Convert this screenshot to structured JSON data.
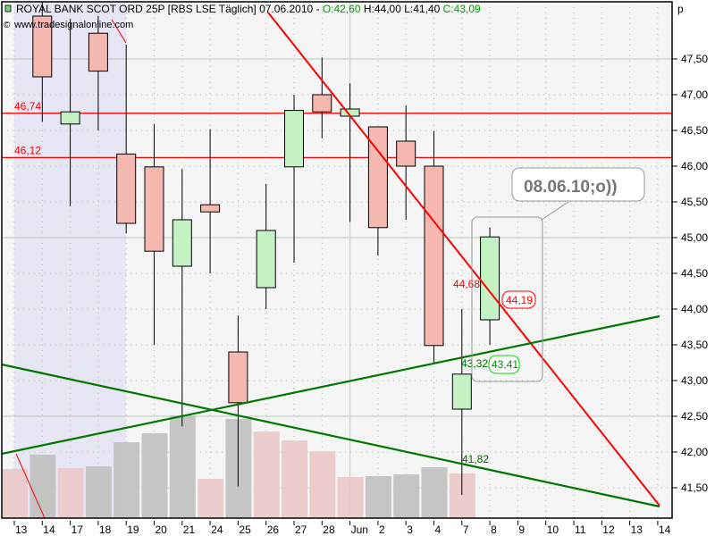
{
  "header": {
    "symbol_text": "ROYAL BANK SCOT ORD 25P [RBS LSE  Täglich] 07.06.2010 - ",
    "open_text": "O:42,60",
    "high_text": "H:44,00",
    "low_text": "L:41,40",
    "close_text": "C:43,09",
    "watermark": "www.tradesignalonline.com",
    "axis_unit": "p"
  },
  "colors": {
    "up_body": "#c4f2c4",
    "down_body": "#f5b8b0",
    "volume_up": "#c0c0c0",
    "volume_down": "#ecc8c8",
    "trend_red": "#ff0000",
    "trend_green": "#007700",
    "background": "#f5f5f5",
    "highlight_region": "#e6e6f4"
  },
  "chart_data": {
    "type": "candlestick",
    "ylim": [
      41.1,
      48.0
    ],
    "y_ticks": [
      "47,50",
      "47,00",
      "46,50",
      "46,00",
      "45,50",
      "45,00",
      "44,50",
      "44,00",
      "43,50",
      "43,00",
      "42,50",
      "42,00",
      "41,50"
    ],
    "y_tick_values": [
      47.5,
      47.0,
      46.5,
      46.0,
      45.5,
      45.0,
      44.5,
      44.0,
      43.5,
      43.0,
      42.5,
      42.0,
      41.5
    ],
    "x_ticks": [
      "13",
      "14",
      "17",
      "18",
      "19",
      "20",
      "21",
      "24",
      "25",
      "26",
      "27",
      "28",
      "Jun",
      "2",
      "3",
      "4",
      "7",
      "8",
      "9",
      "10",
      "11",
      "12",
      "13",
      "14"
    ],
    "candles": [
      {
        "date": "14",
        "o": 48.1,
        "h": 48.3,
        "l": 46.62,
        "c": 47.25
      },
      {
        "date": "17",
        "o": 46.59,
        "h": 48.06,
        "l": 45.44,
        "c": 46.76
      },
      {
        "date": "18",
        "o": 47.86,
        "h": 48.1,
        "l": 46.5,
        "c": 47.33
      },
      {
        "date": "19",
        "o": 46.17,
        "h": 47.7,
        "l": 45.06,
        "c": 45.2
      },
      {
        "date": "20",
        "o": 45.99,
        "h": 46.59,
        "l": 43.5,
        "c": 44.81
      },
      {
        "date": "21",
        "o": 44.6,
        "h": 45.96,
        "l": 42.36,
        "c": 45.25
      },
      {
        "date": "24",
        "o": 45.46,
        "h": 46.52,
        "l": 44.5,
        "c": 45.36
      },
      {
        "date": "25",
        "o": 43.4,
        "h": 43.91,
        "l": 41.52,
        "c": 42.69
      },
      {
        "date": "26",
        "o": 44.3,
        "h": 45.75,
        "l": 44.0,
        "c": 45.1
      },
      {
        "date": "27",
        "o": 45.99,
        "h": 47.0,
        "l": 44.65,
        "c": 46.78
      },
      {
        "date": "28",
        "o": 47.0,
        "h": 47.52,
        "l": 46.39,
        "c": 46.76
      },
      {
        "date": "Jun",
        "o": 46.7,
        "h": 47.16,
        "l": 45.22,
        "c": 46.8
      },
      {
        "date": "2",
        "o": 46.55,
        "h": 46.55,
        "l": 44.75,
        "c": 45.14
      },
      {
        "date": "3",
        "o": 46.35,
        "h": 46.85,
        "l": 45.25,
        "c": 46.0
      },
      {
        "date": "4",
        "o": 46.0,
        "h": 46.49,
        "l": 43.23,
        "c": 43.49
      },
      {
        "date": "7",
        "o": 42.6,
        "h": 44.0,
        "l": 41.4,
        "c": 43.09
      },
      {
        "date": "8",
        "o": 43.85,
        "h": 45.14,
        "l": 43.5,
        "c": 45.01
      }
    ],
    "volume": [
      {
        "date": "13",
        "v": 55,
        "dir": "down"
      },
      {
        "date": "14",
        "v": 71,
        "dir": "up"
      },
      {
        "date": "17",
        "v": 56,
        "dir": "down"
      },
      {
        "date": "18",
        "v": 58,
        "dir": "up"
      },
      {
        "date": "19",
        "v": 85,
        "dir": "up"
      },
      {
        "date": "20",
        "v": 95,
        "dir": "up"
      },
      {
        "date": "21",
        "v": 115,
        "dir": "up"
      },
      {
        "date": "24",
        "v": 44,
        "dir": "down"
      },
      {
        "date": "25",
        "v": 111,
        "dir": "up"
      },
      {
        "date": "26",
        "v": 97,
        "dir": "down"
      },
      {
        "date": "27",
        "v": 87,
        "dir": "down"
      },
      {
        "date": "28",
        "v": 75,
        "dir": "down"
      },
      {
        "date": "Jun",
        "v": 46,
        "dir": "down"
      },
      {
        "date": "2",
        "v": 47,
        "dir": "up"
      },
      {
        "date": "3",
        "v": 49,
        "dir": "up"
      },
      {
        "date": "4",
        "v": 57,
        "dir": "up"
      },
      {
        "date": "7",
        "v": 50,
        "dir": "down"
      }
    ],
    "horizontal_lines": [
      {
        "label": "46,74",
        "value": 46.74
      },
      {
        "label": "46,12",
        "value": 46.12
      }
    ],
    "trendlines": [
      {
        "color": "red",
        "from": {
          "x": "Jun-8d",
          "slot": 9.2,
          "y": 48.15
        },
        "to": {
          "slot": 23,
          "y": 41.25
        }
      },
      {
        "color": "green",
        "from": {
          "slot": -0.5,
          "y": 41.97
        },
        "to": {
          "slot": 23,
          "y": 43.9
        }
      },
      {
        "color": "green",
        "from": {
          "slot": -0.5,
          "y": 43.22
        },
        "to": {
          "slot": 23,
          "y": 41.22
        }
      }
    ],
    "annotations": [
      {
        "text": "44,68",
        "color": "red",
        "boxed": false
      },
      {
        "text": "44,19",
        "color": "red",
        "boxed": true
      },
      {
        "text": "43,32",
        "color": "green",
        "boxed": false
      },
      {
        "text": "43,41",
        "color": "green",
        "boxed": true
      },
      {
        "text": "41,82",
        "color": "green",
        "boxed": false
      }
    ],
    "callout": "08.06.10;o))"
  }
}
